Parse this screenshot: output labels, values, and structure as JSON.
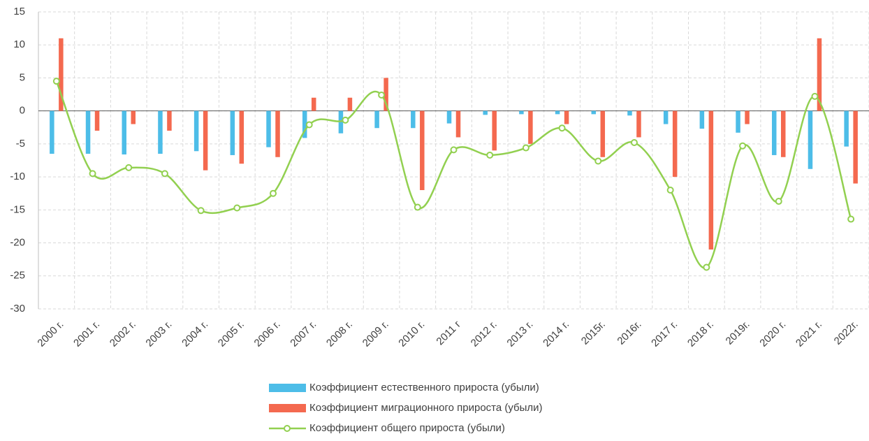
{
  "chart_data": {
    "type": "bar_line",
    "categories": [
      "2000 г.",
      "2001 г.",
      "2002 г.",
      "2003 г.",
      "2004 г.",
      "2005 г.",
      "2006 г.",
      "2007 г.",
      "2008 г.",
      "2009 г.",
      "2010 г.",
      "2011 г",
      "2012 г.",
      "2013 г.",
      "2014 г.",
      "2015г.",
      "2016г.",
      "2017 г.",
      "2018 г.",
      "2019г.",
      "2020 г.",
      "2021 г.",
      "2022г."
    ],
    "series": [
      {
        "name": "Коэффициент естественного прироста (убыли)",
        "type": "bar",
        "color": "#4dbde8",
        "values": [
          -6.5,
          -6.5,
          -6.6,
          -6.5,
          -6.1,
          -6.7,
          -5.5,
          -4.1,
          -3.4,
          -2.6,
          -2.6,
          -1.9,
          -0.6,
          -0.5,
          -0.5,
          -0.5,
          -0.7,
          -2.0,
          -2.7,
          -3.3,
          -6.7,
          -8.8,
          -5.4
        ]
      },
      {
        "name": "Коэффициент миграционного прироста (убыли)",
        "type": "bar",
        "color": "#f4694f",
        "values": [
          11,
          -3,
          -2,
          -3,
          -9,
          -8,
          -7,
          2,
          2,
          5,
          -12,
          -4,
          -6,
          -5,
          -2,
          -7,
          -4,
          -10,
          -21,
          -2,
          -7,
          11,
          -11
        ]
      },
      {
        "name": "Коэффициент общего прироста (убыли)",
        "type": "line",
        "color": "#92d050",
        "values": [
          4.5,
          -9.5,
          -8.6,
          -9.5,
          -15.1,
          -14.7,
          -12.5,
          -2.1,
          -1.4,
          2.4,
          -14.6,
          -5.9,
          -6.7,
          -5.6,
          -2.6,
          -7.6,
          -4.8,
          -12.0,
          -23.7,
          -5.3,
          -13.7,
          2.2,
          -16.4
        ]
      }
    ],
    "ylim": [
      -30,
      15
    ],
    "yticks": [
      -30,
      -25,
      -20,
      -15,
      -10,
      -5,
      0,
      5,
      10,
      15
    ],
    "grid": true,
    "legend": "bottom"
  }
}
